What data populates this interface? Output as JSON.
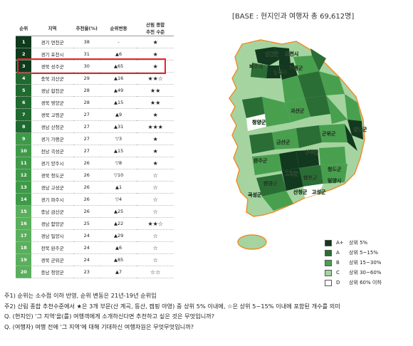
{
  "header": {
    "base_text": "[BASE : 현지인과 여행자 총 69,612명]"
  },
  "table": {
    "headers": [
      "순위",
      "지역",
      "추천율(%)",
      "순위변동",
      "산림 종합\n추천 수준"
    ],
    "rows": [
      {
        "rank": "1",
        "region": "경기 연천군",
        "rate": "38",
        "change": "-",
        "stars": "★"
      },
      {
        "rank": "2",
        "region": "경기 포천시",
        "rate": "31",
        "change": "▲6",
        "stars": "★"
      },
      {
        "rank": "3",
        "region": "경북 성주군",
        "rate": "30",
        "change": "▲65",
        "stars": "★"
      },
      {
        "rank": "4",
        "region": "충북 괴산군",
        "rate": "29",
        "change": "▲16",
        "stars": "★★☆"
      },
      {
        "rank": "5",
        "region": "경남 합천군",
        "rate": "28",
        "change": "▲49",
        "stars": "★★"
      },
      {
        "rank": "6",
        "region": "경북 영양군",
        "rate": "28",
        "change": "▲15",
        "stars": "★★"
      },
      {
        "rank": "7",
        "region": "경북 고령군",
        "rate": "27",
        "change": "▲9",
        "stars": "★"
      },
      {
        "rank": "8",
        "region": "경남 산청군",
        "rate": "27",
        "change": "▲31",
        "stars": "★★★"
      },
      {
        "rank": "9",
        "region": "경기 가평군",
        "rate": "27",
        "change": "▽3",
        "stars": "★"
      },
      {
        "rank": "10",
        "region": "전남 곡성군",
        "rate": "27",
        "change": "▲15",
        "stars": "★"
      },
      {
        "rank": "11",
        "region": "경기 양주시",
        "rate": "26",
        "change": "▽8",
        "stars": "★"
      },
      {
        "rank": "12",
        "region": "경북 청도군",
        "rate": "26",
        "change": "▽10",
        "stars": "☆"
      },
      {
        "rank": "13",
        "region": "경남 고성군",
        "rate": "26",
        "change": "▲1",
        "stars": "☆"
      },
      {
        "rank": "14",
        "region": "경기 파주시",
        "rate": "26",
        "change": "▽4",
        "stars": "☆"
      },
      {
        "rank": "15",
        "region": "충남 금산군",
        "rate": "26",
        "change": "▲25",
        "stars": "☆"
      },
      {
        "rank": "16",
        "region": "경남 함양군",
        "rate": "25",
        "change": "▲22",
        "stars": "★★☆"
      },
      {
        "rank": "17",
        "region": "경남 밀양시",
        "rate": "24",
        "change": "▲29",
        "stars": "☆"
      },
      {
        "rank": "18",
        "region": "전북 완주군",
        "rate": "24",
        "change": "▲6",
        "stars": "☆"
      },
      {
        "rank": "19",
        "region": "경북 군위군",
        "rate": "24",
        "change": "▲85",
        "stars": "☆"
      },
      {
        "rank": "20",
        "region": "충남 청양군",
        "rate": "23",
        "change": "▲7",
        "stars": "☆☆"
      }
    ]
  },
  "map_labels": [
    {
      "text": "연천군"
    },
    {
      "text": "포천시"
    },
    {
      "text": "파주시"
    },
    {
      "text": "양주시"
    },
    {
      "text": "가평군"
    },
    {
      "text": "괴산군"
    },
    {
      "text": "영양군"
    },
    {
      "text": "청양군"
    },
    {
      "text": "금산군"
    },
    {
      "text": "군위군"
    },
    {
      "text": "완주군"
    },
    {
      "text": "성주군"
    },
    {
      "text": "청도군"
    },
    {
      "text": "고령군"
    },
    {
      "text": "밀양시"
    },
    {
      "text": "함양군"
    },
    {
      "text": "합천군"
    },
    {
      "text": "산청군"
    },
    {
      "text": "곡성군"
    },
    {
      "text": "고성군"
    }
  ],
  "legend": [
    {
      "code": "A+",
      "label": "상위 5%",
      "color": "#12381f"
    },
    {
      "code": "A",
      "label": "상위 5~15%",
      "color": "#2a6e35"
    },
    {
      "code": "B",
      "label": "상위 15~30%",
      "color": "#48a04f"
    },
    {
      "code": "C",
      "label": "상위 30~60%",
      "color": "#a5d4a0"
    },
    {
      "code": "D",
      "label": "상위 60% 이하",
      "color": "#ffffff"
    }
  ],
  "notes": [
    "주1) 순위는 소수점 이하 반영, 순위 변동은 21년-19년 순위임",
    "주2) 산림 종합 추천수준에서 ★은 3개 부문(산 계곡, 등산, 캠핑 야영) 중 상위 5% 이내에, ☆은 상위 5~15% 이내에 포함된 개수를 의미",
    "Q. (현지인) '그 지역'을(를) 여행객에게 소개하신다면 추천하고 싶은 것은 무엇입니까?",
    "Q. (여행자) 여행 전에 '그 지역'에 대해 기대하신 여행자원은 무엇무엇입니까?"
  ],
  "colors": {
    "rank_gradient": [
      "#0f3a1c",
      "#1f6a2f",
      "#3e9a48",
      "#5aaf5c"
    ],
    "highlight": "#e5242b",
    "map_border": "#f08a24"
  }
}
